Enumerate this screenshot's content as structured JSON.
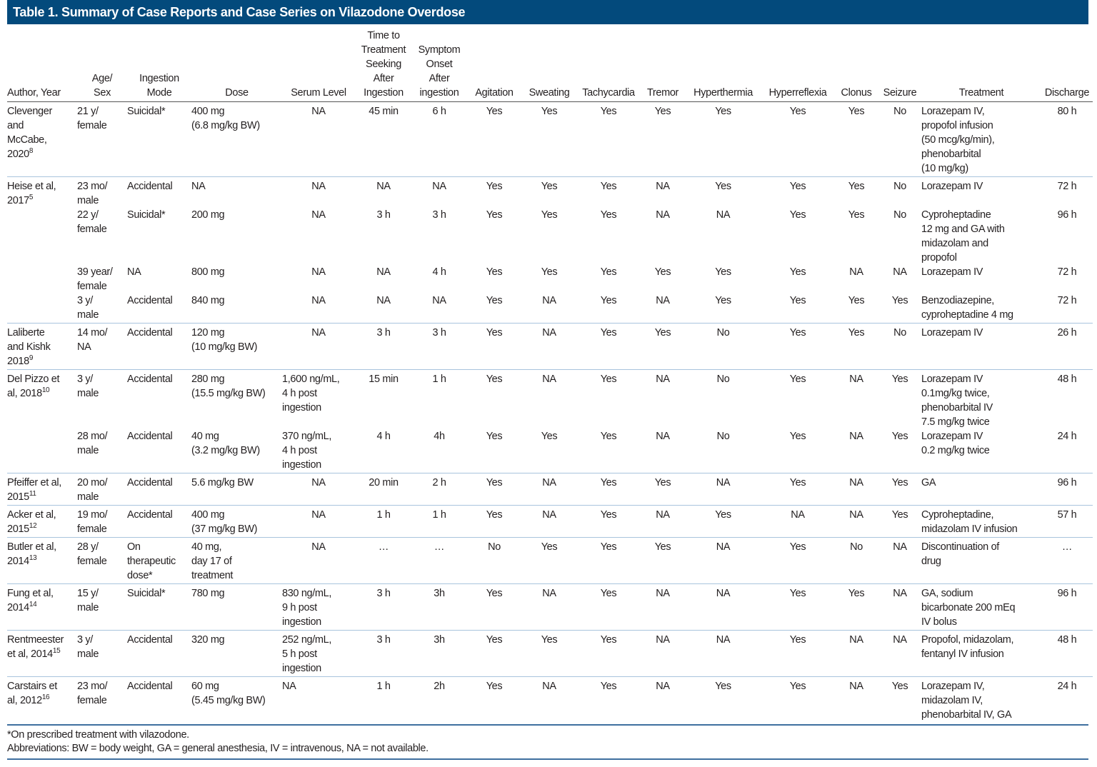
{
  "title": "Table 1. Summary of Case Reports and Case Series on Vilazodone Overdose",
  "columns": [
    "Author, Year",
    "Age/\nSex",
    "Ingestion\nMode",
    "Dose",
    "Serum Level",
    "Time to\nTreatment\nSeeking\nAfter\nIngestion",
    "Symptom\nOnset\nAfter\ningestion",
    "Agitation",
    "Sweating",
    "Tachycardia",
    "Tremor",
    "Hyperthermia",
    "Hyperreflexia",
    "Clonus",
    "Seizure",
    "Treatment",
    "Discharge"
  ],
  "groups": [
    {
      "author": "Clevenger\nand\nMcCabe,\n2020",
      "ref": "8",
      "entries": [
        [
          "21 y/\nfemale",
          "Suicidal*",
          "400 mg\n(6.8 mg/kg BW)",
          "NA",
          "45 min",
          "6 h",
          "Yes",
          "Yes",
          "Yes",
          "Yes",
          "Yes",
          "Yes",
          "Yes",
          "No",
          "Lorazepam IV,\npropofol infusion\n(50 mcg/kg/min),\nphenobarbital\n(10 mg/kg)",
          "80 h"
        ]
      ]
    },
    {
      "author": "Heise et al,\n2017",
      "ref": "5",
      "entries": [
        [
          "23 mo/\nmale",
          "Accidental",
          "NA",
          "NA",
          "NA",
          "NA",
          "Yes",
          "Yes",
          "Yes",
          "NA",
          "Yes",
          "Yes",
          "Yes",
          "No",
          "Lorazepam IV",
          "72 h"
        ],
        [
          "22 y/\nfemale",
          "Suicidal*",
          "200 mg",
          "NA",
          "3 h",
          "3 h",
          "Yes",
          "Yes",
          "Yes",
          "NA",
          "NA",
          "Yes",
          "Yes",
          "No",
          "Cyproheptadine\n12 mg and GA with\nmidazolam and\npropofol",
          "96 h"
        ],
        [
          "39 year/\nfemale",
          "NA",
          "800 mg",
          "NA",
          "NA",
          "4 h",
          "Yes",
          "Yes",
          "Yes",
          "Yes",
          "Yes",
          "Yes",
          "NA",
          "NA",
          "Lorazepam IV",
          "72 h"
        ],
        [
          "3 y/\nmale",
          "Accidental",
          "840 mg",
          "NA",
          "NA",
          "NA",
          "Yes",
          "NA",
          "Yes",
          "NA",
          "Yes",
          "Yes",
          "Yes",
          "Yes",
          "Benzodiazepine,\ncyproheptadine 4 mg",
          "72 h"
        ]
      ]
    },
    {
      "author": "Laliberte\nand Kishk\n2018",
      "ref": "9",
      "entries": [
        [
          "14 mo/\nNA",
          "Accidental",
          "120 mg\n(10 mg/kg BW)",
          "NA",
          "3 h",
          "3 h",
          "Yes",
          "NA",
          "Yes",
          "Yes",
          "No",
          "Yes",
          "Yes",
          "No",
          "Lorazepam IV",
          "26 h"
        ]
      ]
    },
    {
      "author": "Del Pizzo et\nal, 2018",
      "ref": "10",
      "entries": [
        [
          "3 y/\nmale",
          "Accidental",
          "280 mg\n(15.5 mg/kg BW)",
          "1,600 ng/mL,\n4 h post\ningestion",
          "15 min",
          "1 h",
          "Yes",
          "NA",
          "Yes",
          "NA",
          "No",
          "Yes",
          "NA",
          "Yes",
          "Lorazepam IV\n0.1mg/kg twice,\nphenobarbital IV\n7.5 mg/kg twice",
          "48 h"
        ],
        [
          "28 mo/\nmale",
          "Accidental",
          "40 mg\n(3.2 mg/kg BW)",
          "370 ng/mL,\n4 h post\ningestion",
          "4 h",
          "4h",
          "Yes",
          "Yes",
          "Yes",
          "NA",
          "No",
          "Yes",
          "NA",
          "Yes",
          "Lorazepam IV\n0.2 mg/kg twice",
          "24 h"
        ]
      ]
    },
    {
      "author": "Pfeiffer et al,\n2015",
      "ref": "11",
      "entries": [
        [
          "20 mo/\nmale",
          "Accidental",
          "5.6 mg/kg BW",
          "NA",
          "20 min",
          "2 h",
          "Yes",
          "NA",
          "Yes",
          "Yes",
          "NA",
          "Yes",
          "NA",
          "Yes",
          "GA",
          "96 h"
        ]
      ]
    },
    {
      "author": "Acker et al,\n2015",
      "ref": "12",
      "entries": [
        [
          "19 mo/\nfemale",
          "Accidental",
          "400 mg\n(37 mg/kg BW)",
          "NA",
          "1 h",
          "1 h",
          "Yes",
          "NA",
          "Yes",
          "NA",
          "Yes",
          "NA",
          "NA",
          "Yes",
          "Cyproheptadine,\nmidazolam IV infusion",
          "57 h"
        ]
      ]
    },
    {
      "author": "Butler et al,\n2014",
      "ref": "13",
      "entries": [
        [
          "28 y/\nfemale",
          "On\ntherapeutic\ndose*",
          "40 mg,\nday 17 of\ntreatment",
          "NA",
          "…",
          "…",
          "No",
          "Yes",
          "Yes",
          "Yes",
          "NA",
          "Yes",
          "No",
          "NA",
          "Discontinuation of\ndrug",
          "…"
        ]
      ]
    },
    {
      "author": "Fung et al,\n2014",
      "ref": "14",
      "entries": [
        [
          "15 y/\nmale",
          "Suicidal*",
          "780 mg",
          "830 ng/mL,\n9 h post\ningestion",
          "3 h",
          "3h",
          "Yes",
          "NA",
          "Yes",
          "NA",
          "NA",
          "Yes",
          "Yes",
          "NA",
          "GA, sodium\nbicarbonate 200 mEq\nIV bolus",
          "96 h"
        ]
      ]
    },
    {
      "author": "Rentmeester\net al, 2014",
      "ref": "15",
      "entries": [
        [
          "3 y/\nmale",
          "Accidental",
          "320 mg",
          "252 ng/mL,\n5 h post\ningestion",
          "3 h",
          "3h",
          "Yes",
          "Yes",
          "Yes",
          "NA",
          "NA",
          "Yes",
          "NA",
          "NA",
          "Propofol, midazolam,\nfentanyl IV infusion",
          "48 h"
        ]
      ]
    },
    {
      "author": "Carstairs et\nal, 2012",
      "ref": "16",
      "entries": [
        [
          "23 mo/\nfemale",
          "Accidental",
          "60 mg\n(5.45 mg/kg BW)",
          "NA",
          "1 h",
          "2h",
          "Yes",
          "NA",
          "Yes",
          "NA",
          "Yes",
          "Yes",
          "NA",
          "Yes",
          "Lorazepam IV,\nmidazolam IV,\nphenobarbital IV, GA",
          "24 h"
        ]
      ]
    }
  ],
  "footnotes": {
    "asterisk": "*On prescribed treatment with vilazodone.",
    "abbreviations": "Abbreviations: BW = body weight, GA = general anesthesia, IV = intravenous, NA = not available."
  }
}
